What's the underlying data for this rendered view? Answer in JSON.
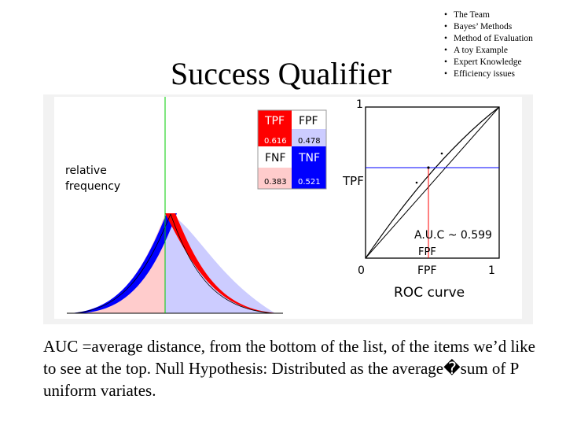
{
  "slide": {
    "title": "Success Qualifier",
    "outline": [
      "The Team",
      "Bayes’ Methods",
      "Method of Evaluation",
      "A toy Example",
      "Expert Knowledge",
      "Efficiency issues"
    ],
    "caption": "AUC =average distance, from the bottom of the list, of the items we’d like to see at the top.  Null Hypothesis: Distributed as the average�sum of P uniform variates."
  },
  "figure": {
    "y_axis_label_line1": "relative",
    "y_axis_label_line2": "frequency",
    "matrix": {
      "tpf_label": "TPF",
      "tpf_value": "0.616",
      "fpf_label": "FPF",
      "fpf_value": "0.478",
      "fnf_label": "FNF",
      "fnf_value": "0.383",
      "tnf_label": "TNF",
      "tnf_value": "0.521"
    },
    "roc": {
      "y_top_label": "1",
      "y_axis_label": "TPF",
      "origin_label": "0",
      "x_axis_label": "FPF",
      "x_max_label": "1",
      "marker_label": "FPF",
      "auc_label": "A.U.C ~ 0.599",
      "curve_title": "ROC curve"
    }
  },
  "colors": {
    "signal": "#ff0000",
    "noise": "#0000ff",
    "signal_fill": "#ffcccc",
    "noise_fill": "#ccccff",
    "threshold": "#00cc00",
    "figure_bg": "#f2f2f2"
  }
}
